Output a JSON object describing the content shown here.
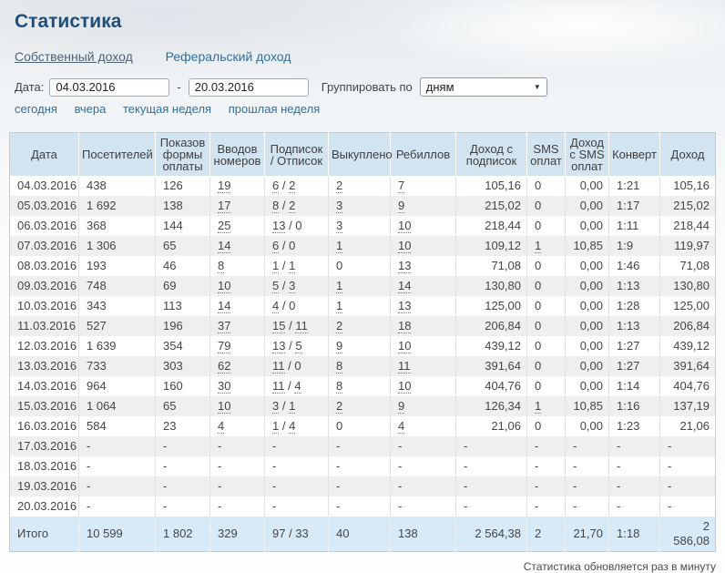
{
  "page": {
    "title": "Статистика",
    "footer_note": "Статистика обновляется раз в минуту"
  },
  "colors": {
    "title": "#1d4e7d",
    "link_blue": "#2f6f9f",
    "header_bg": "#d3e4f1",
    "total_row_bg": "#d8e9f7",
    "stripe_row_bg": "#efefef"
  },
  "tabs": {
    "own_income": "Собственный доход",
    "referral_income": "Реферальский доход"
  },
  "filters": {
    "date_label": "Дата:",
    "date_from": "04.03.2016",
    "date_separator": "-",
    "date_to": "20.03.2016",
    "group_label": "Группировать по",
    "group_value": "дням",
    "dropdown_arrow": "▼",
    "quick_links": [
      "сегодня",
      "вчера",
      "текущая неделя",
      "прошлая неделя"
    ]
  },
  "table": {
    "columns": [
      {
        "id": "date",
        "label": "Дата",
        "align": "l"
      },
      {
        "id": "visitors",
        "label": "Посетителей",
        "align": "l"
      },
      {
        "id": "payform-shows",
        "label": "Показов формы оплаты",
        "align": "l"
      },
      {
        "id": "number-entries",
        "label": "Вводов номеров",
        "align": "l"
      },
      {
        "id": "subs-unsubs",
        "label": "Подписок / Отписок",
        "align": "l"
      },
      {
        "id": "bought",
        "label": "Выкуплено",
        "align": "l"
      },
      {
        "id": "rebills",
        "label": "Ребиллов",
        "align": "l"
      },
      {
        "id": "subs-income",
        "label": "Доход с подписок",
        "align": "r"
      },
      {
        "id": "sms-payments",
        "label": "SMS оплат",
        "align": "l"
      },
      {
        "id": "sms-income",
        "label": "Доход с SMS оплат",
        "align": "r"
      },
      {
        "id": "convert",
        "label": "Конверт",
        "align": "l"
      },
      {
        "id": "income",
        "label": "Доход",
        "align": "r"
      }
    ],
    "rows": [
      {
        "cells": [
          "04.03.2016",
          "438",
          "126",
          {
            "parts": [
              {
                "t": "19",
                "link": true
              }
            ]
          },
          {
            "parts": [
              {
                "t": "6",
                "link": true
              },
              {
                "t": " / "
              },
              {
                "t": "2",
                "link": true
              }
            ]
          },
          {
            "parts": [
              {
                "t": "2",
                "link": true
              }
            ]
          },
          {
            "parts": [
              {
                "t": "7",
                "link": true
              }
            ]
          },
          "105,16",
          "0",
          "0,00",
          "1:21",
          "105,16"
        ]
      },
      {
        "cells": [
          "05.03.2016",
          "1 692",
          "138",
          {
            "parts": [
              {
                "t": "17",
                "link": true
              }
            ]
          },
          {
            "parts": [
              {
                "t": "8",
                "link": true
              },
              {
                "t": " / "
              },
              {
                "t": "2",
                "link": true
              }
            ]
          },
          {
            "parts": [
              {
                "t": "3",
                "link": true
              }
            ]
          },
          {
            "parts": [
              {
                "t": "9",
                "link": true
              }
            ]
          },
          "215,02",
          "0",
          "0,00",
          "1:17",
          "215,02"
        ]
      },
      {
        "cells": [
          "06.03.2016",
          "368",
          "144",
          {
            "parts": [
              {
                "t": "25",
                "link": true
              }
            ]
          },
          {
            "parts": [
              {
                "t": "13",
                "link": true
              },
              {
                "t": " / 0"
              }
            ]
          },
          {
            "parts": [
              {
                "t": "3",
                "link": true
              }
            ]
          },
          {
            "parts": [
              {
                "t": "10",
                "link": true
              }
            ]
          },
          "218,44",
          "0",
          "0,00",
          "1:11",
          "218,44"
        ]
      },
      {
        "cells": [
          "07.03.2016",
          "1 306",
          "65",
          {
            "parts": [
              {
                "t": "14",
                "link": true
              }
            ]
          },
          {
            "parts": [
              {
                "t": "6",
                "link": true
              },
              {
                "t": " / 0"
              }
            ]
          },
          {
            "parts": [
              {
                "t": "1",
                "link": true
              }
            ]
          },
          {
            "parts": [
              {
                "t": "10",
                "link": true
              }
            ]
          },
          "109,12",
          {
            "parts": [
              {
                "t": "1",
                "link": true
              }
            ]
          },
          "10,85",
          "1:9",
          "119,97"
        ]
      },
      {
        "cells": [
          "08.03.2016",
          "193",
          "46",
          {
            "parts": [
              {
                "t": "8",
                "link": true
              }
            ]
          },
          {
            "parts": [
              {
                "t": "1",
                "link": true
              },
              {
                "t": " / "
              },
              {
                "t": "1",
                "link": true
              }
            ]
          },
          "0",
          {
            "parts": [
              {
                "t": "13",
                "link": true
              }
            ]
          },
          "71,08",
          "0",
          "0,00",
          "1:46",
          "71,08"
        ]
      },
      {
        "cells": [
          "09.03.2016",
          "748",
          "69",
          {
            "parts": [
              {
                "t": "10",
                "link": true
              }
            ]
          },
          {
            "parts": [
              {
                "t": "5",
                "link": true
              },
              {
                "t": " / "
              },
              {
                "t": "3",
                "link": true
              }
            ]
          },
          {
            "parts": [
              {
                "t": "1",
                "link": true
              }
            ]
          },
          {
            "parts": [
              {
                "t": "14",
                "link": true
              }
            ]
          },
          "130,80",
          "0",
          "0,00",
          "1:13",
          "130,80"
        ]
      },
      {
        "cells": [
          "10.03.2016",
          "343",
          "113",
          {
            "parts": [
              {
                "t": "14",
                "link": true
              }
            ]
          },
          {
            "parts": [
              {
                "t": "4",
                "link": true
              },
              {
                "t": " / 0"
              }
            ]
          },
          {
            "parts": [
              {
                "t": "1",
                "link": true
              }
            ]
          },
          {
            "parts": [
              {
                "t": "13",
                "link": true
              }
            ]
          },
          "125,00",
          "0",
          "0,00",
          "1:28",
          "125,00"
        ]
      },
      {
        "cells": [
          "11.03.2016",
          "527",
          "196",
          {
            "parts": [
              {
                "t": "37",
                "link": true
              }
            ]
          },
          {
            "parts": [
              {
                "t": "15",
                "link": true
              },
              {
                "t": " / "
              },
              {
                "t": "11",
                "link": true
              }
            ]
          },
          {
            "parts": [
              {
                "t": "2",
                "link": true
              }
            ]
          },
          {
            "parts": [
              {
                "t": "18",
                "link": true
              }
            ]
          },
          "206,84",
          "0",
          "0,00",
          "1:13",
          "206,84"
        ]
      },
      {
        "cells": [
          "12.03.2016",
          "1 639",
          "354",
          {
            "parts": [
              {
                "t": "79",
                "link": true
              }
            ]
          },
          {
            "parts": [
              {
                "t": "13",
                "link": true
              },
              {
                "t": " / "
              },
              {
                "t": "5",
                "link": true
              }
            ]
          },
          {
            "parts": [
              {
                "t": "9",
                "link": true
              }
            ]
          },
          {
            "parts": [
              {
                "t": "10",
                "link": true
              }
            ]
          },
          "439,12",
          "0",
          "0,00",
          "1:27",
          "439,12"
        ]
      },
      {
        "cells": [
          "13.03.2016",
          "733",
          "303",
          {
            "parts": [
              {
                "t": "62",
                "link": true
              }
            ]
          },
          {
            "parts": [
              {
                "t": "11",
                "link": true
              },
              {
                "t": " / 0"
              }
            ]
          },
          {
            "parts": [
              {
                "t": "8",
                "link": true
              }
            ]
          },
          {
            "parts": [
              {
                "t": "11",
                "link": true
              }
            ]
          },
          "391,64",
          "0",
          "0,00",
          "1:27",
          "391,64"
        ]
      },
      {
        "cells": [
          "14.03.2016",
          "964",
          "160",
          {
            "parts": [
              {
                "t": "30",
                "link": true
              }
            ]
          },
          {
            "parts": [
              {
                "t": "11",
                "link": true
              },
              {
                "t": " / "
              },
              {
                "t": "4",
                "link": true
              }
            ]
          },
          {
            "parts": [
              {
                "t": "8",
                "link": true
              }
            ]
          },
          {
            "parts": [
              {
                "t": "10",
                "link": true
              }
            ]
          },
          "404,76",
          "0",
          "0,00",
          "1:14",
          "404,76"
        ]
      },
      {
        "cells": [
          "15.03.2016",
          "1 064",
          "65",
          {
            "parts": [
              {
                "t": "10",
                "link": true
              }
            ]
          },
          {
            "parts": [
              {
                "t": "3",
                "link": true
              },
              {
                "t": " / "
              },
              {
                "t": "1",
                "link": true
              }
            ]
          },
          {
            "parts": [
              {
                "t": "2",
                "link": true
              }
            ]
          },
          {
            "parts": [
              {
                "t": "9",
                "link": true
              }
            ]
          },
          "126,34",
          {
            "parts": [
              {
                "t": "1",
                "link": true
              }
            ]
          },
          "10,85",
          "1:16",
          "137,19"
        ]
      },
      {
        "cells": [
          "16.03.2016",
          "584",
          "23",
          {
            "parts": [
              {
                "t": "4",
                "link": true
              }
            ]
          },
          {
            "parts": [
              {
                "t": "1",
                "link": true
              },
              {
                "t": " / "
              },
              {
                "t": "4",
                "link": true
              }
            ]
          },
          "0",
          {
            "parts": [
              {
                "t": "4",
                "link": true
              }
            ]
          },
          "21,06",
          "0",
          "0,00",
          "1:23",
          "21,06"
        ]
      },
      {
        "cells": [
          "17.03.2016",
          "-",
          "-",
          "-",
          "-",
          "-",
          "-",
          {
            "parts": [
              {
                "t": "-"
              }
            ],
            "align": "l"
          },
          "-",
          {
            "parts": [
              {
                "t": "-"
              }
            ],
            "align": "l"
          },
          "-",
          {
            "parts": [
              {
                "t": "-"
              }
            ],
            "align": "l"
          }
        ]
      },
      {
        "cells": [
          "18.03.2016",
          "-",
          "-",
          "-",
          "-",
          "-",
          "-",
          {
            "parts": [
              {
                "t": "-"
              }
            ],
            "align": "l"
          },
          "-",
          {
            "parts": [
              {
                "t": "-"
              }
            ],
            "align": "l"
          },
          "-",
          {
            "parts": [
              {
                "t": "-"
              }
            ],
            "align": "l"
          }
        ]
      },
      {
        "cells": [
          "19.03.2016",
          "-",
          "-",
          "-",
          "-",
          "-",
          "-",
          {
            "parts": [
              {
                "t": "-"
              }
            ],
            "align": "l"
          },
          "-",
          {
            "parts": [
              {
                "t": "-"
              }
            ],
            "align": "l"
          },
          "-",
          {
            "parts": [
              {
                "t": "-"
              }
            ],
            "align": "l"
          }
        ]
      },
      {
        "cells": [
          "20.03.2016",
          "-",
          "-",
          "-",
          "-",
          "-",
          "-",
          {
            "parts": [
              {
                "t": "-"
              }
            ],
            "align": "l"
          },
          "-",
          {
            "parts": [
              {
                "t": "-"
              }
            ],
            "align": "l"
          },
          "-",
          {
            "parts": [
              {
                "t": "-"
              }
            ],
            "align": "l"
          }
        ]
      }
    ],
    "total_row": {
      "cells": [
        "Итого",
        "10 599",
        "1 802",
        "329",
        "97 / 33",
        "40",
        "138",
        "2 564,38",
        "2",
        "21,70",
        "1:18",
        "2 586,08"
      ]
    }
  }
}
